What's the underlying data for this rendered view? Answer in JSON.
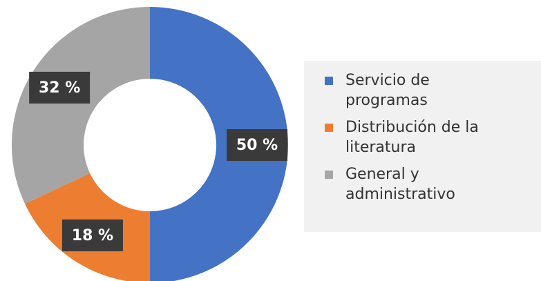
{
  "chart_data": {
    "type": "donut",
    "categories": [
      "Servicio de programas",
      "Distribución de la literatura",
      "General y administrativo"
    ],
    "values": [
      50,
      18,
      32
    ],
    "value_labels": [
      "50 %",
      "18 %",
      "32 %"
    ],
    "colors": [
      "#4472c4",
      "#ed7d31",
      "#a5a5a5"
    ],
    "legend": "right"
  }
}
